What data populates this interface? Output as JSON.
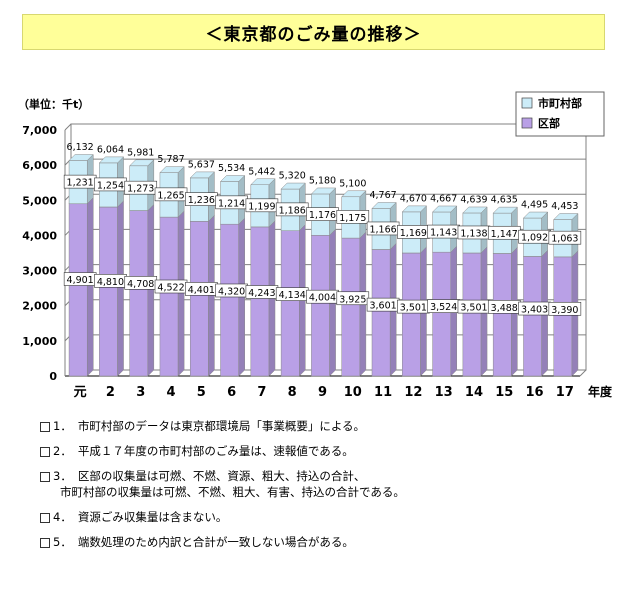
{
  "title": "＜東京都のごみ量の推移＞",
  "unit_label": "（単位：千t）",
  "chart_data": {
    "type": "bar",
    "stacked": true,
    "categories": [
      "元",
      "2",
      "3",
      "4",
      "5",
      "6",
      "7",
      "8",
      "9",
      "10",
      "11",
      "12",
      "13",
      "14",
      "15",
      "16",
      "17"
    ],
    "x_suffix": "年度",
    "series": [
      {
        "name": "区部",
        "color": "#b9a0e6",
        "values": [
          4901,
          4810,
          4708,
          4522,
          4401,
          4320,
          4243,
          4134,
          4004,
          3925,
          3601,
          3501,
          3524,
          3501,
          3488,
          3403,
          3390
        ]
      },
      {
        "name": "市町村部",
        "color": "#ccecf8",
        "values": [
          1231,
          1254,
          1273,
          1265,
          1236,
          1214,
          1199,
          1186,
          1176,
          1175,
          1166,
          1169,
          1143,
          1138,
          1147,
          1092,
          1063
        ]
      }
    ],
    "totals": [
      6132,
      6064,
      5981,
      5787,
      5637,
      5534,
      5442,
      5320,
      5180,
      5100,
      4767,
      4670,
      4667,
      4639,
      4635,
      4495,
      4453
    ],
    "ylim": [
      0,
      7000
    ],
    "yticks": [
      0,
      1000,
      2000,
      3000,
      4000,
      5000,
      6000,
      7000
    ],
    "legend_position": "top-right",
    "legend_order": [
      "市町村部",
      "区部"
    ]
  },
  "notes": [
    {
      "num": "1．",
      "lines": [
        "市町村部のデータは東京都環境局「事業概要」による。"
      ]
    },
    {
      "num": "2．",
      "lines": [
        "平成１７年度の市町村部のごみ量は、速報値である。"
      ]
    },
    {
      "num": "3．",
      "lines": [
        "区部の収集量は可燃、不燃、資源、粗大、持込の合計、",
        "市町村部の収集量は可燃、不燃、粗大、有害、持込の合計である。"
      ]
    },
    {
      "num": "4．",
      "lines": [
        "資源ごみ収集量は含まない。"
      ]
    },
    {
      "num": "5．",
      "lines": [
        "端数処理のため内訳と合計が一致しない場合がある。"
      ]
    }
  ]
}
